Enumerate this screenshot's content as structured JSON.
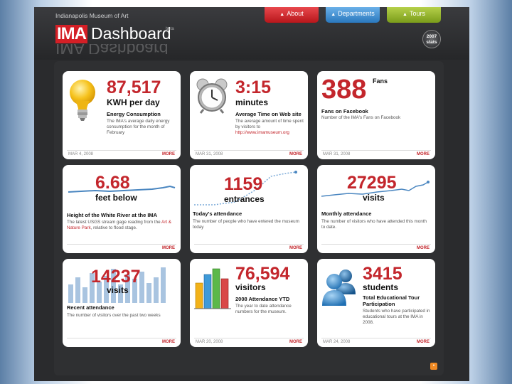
{
  "header": {
    "org_name": "Indianapolis Museum of Art",
    "logo_mark": "IMA",
    "logo_text": "Dashboard",
    "beta_label": "beta",
    "badge": "2007 stats",
    "nav": [
      {
        "label": "About",
        "color": "#c8202a"
      },
      {
        "label": "Departments",
        "color": "#3a86cc"
      },
      {
        "label": "Tours",
        "color": "#8cae25"
      }
    ]
  },
  "cards": [
    {
      "big": "87,517",
      "sub": "KWH per day",
      "title": "Energy Consumption",
      "desc": "The IMA's average daily energy consumption for the month of February",
      "date": "MAR 4, 2008",
      "more": "MORE",
      "icon": "lightbulb-icon"
    },
    {
      "big": "3:15",
      "sub": "minutes",
      "title": "Average Time on Web site",
      "desc": "The average amount of time spent by visitors to",
      "link": "http://www.imamuseum.org",
      "date": "MAR 31, 2008",
      "more": "MORE",
      "icon": "alarm-clock-icon"
    },
    {
      "big": "388",
      "sub": "Fans",
      "title": "Fans on Facebook",
      "desc": "Number of the IMA's Fans on Facebook",
      "date": "MAR 31, 2008",
      "more": "MORE",
      "icon": ""
    },
    {
      "big": "6.68",
      "sub": "feet below",
      "title": "Height of the White River at the IMA",
      "desc": "The latest USGS stream gage reading from the",
      "link": "Art & Nature Park",
      "desc2": ", relative to flood stage.",
      "date": "",
      "more": "MORE",
      "icon": "river-sparkline"
    },
    {
      "big": "1159",
      "sub": "entrances",
      "title": "Today's attendance",
      "desc": "The number of people who have entered the museum today",
      "date": "",
      "more": "MORE",
      "icon": "attendance-sparkline"
    },
    {
      "big": "27295",
      "sub": "visits",
      "title": "Monthly attendance",
      "desc": "The number of visitors who have attended this month to date.",
      "date": "",
      "more": "MORE",
      "icon": "monthly-sparkline"
    },
    {
      "big": "14237",
      "sub": "visits",
      "title": "Recent attendance",
      "desc": "The number of visitors over the past two weeks",
      "date": "",
      "more": "MORE",
      "icon": "bar-chart-icon"
    },
    {
      "big": "76,594",
      "sub": "visitors",
      "title": "2008 Attendance YTD",
      "desc": "The year to date attendance numbers for the museum.",
      "date": "MAR 20, 2008",
      "more": "MORE",
      "icon": "color-bars-icon"
    },
    {
      "big": "3415",
      "sub": "students",
      "title": "Total Educational Tour Participation",
      "desc": "Students who have participated in educational tours at the IMA in 2008.",
      "date": "MAR 24, 2008",
      "more": "MORE",
      "icon": "people-icon"
    }
  ],
  "footer": {
    "rss_icon": "rss-icon"
  },
  "colors": {
    "accent_red": "#c3262c",
    "frame": "#2a2b2d",
    "panel": "#2f3032"
  }
}
